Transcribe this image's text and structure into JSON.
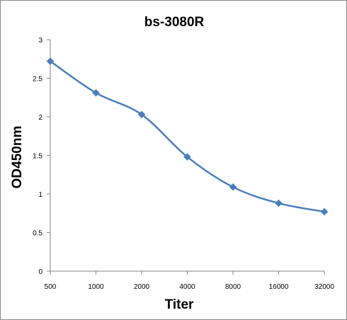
{
  "chart_data": {
    "type": "line",
    "title": "bs-3080R",
    "xlabel": "Titer",
    "ylabel": "OD450nm",
    "categories": [
      "500",
      "1000",
      "2000",
      "4000",
      "8000",
      "16000",
      "32000"
    ],
    "series": [
      {
        "values": [
          2.72,
          2.31,
          2.03,
          1.48,
          1.09,
          0.88,
          0.77
        ]
      }
    ],
    "ylim": [
      0,
      3
    ],
    "yticks": [
      "0",
      "0.5",
      "1",
      "1.5",
      "2",
      "2.5",
      "3"
    ],
    "grid": false,
    "legend": "none",
    "line_color": "#4a7ebb",
    "axis_color": "#868686"
  }
}
